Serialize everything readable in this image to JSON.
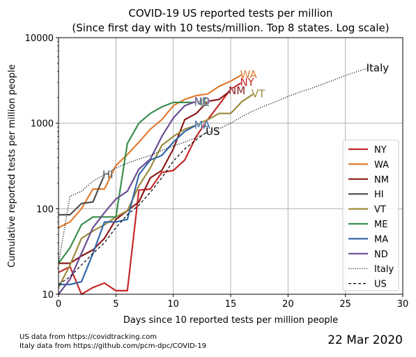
{
  "chart_data": {
    "type": "line",
    "title_line1": "COVID-19 US reported tests per million",
    "title_line2": "(Since first day with 10 tests/million. Top 8 states. Log scale)",
    "xlabel": "Days since 10 reported tests per million people",
    "ylabel": "Cumulative reported tests per million people",
    "xlim": [
      0,
      30
    ],
    "ylim": [
      10,
      10000
    ],
    "yscale": "log",
    "grid": true,
    "legend_placement": "lower-right",
    "x_ticks": [
      "0",
      "5",
      "10",
      "15",
      "20",
      "25",
      "30"
    ],
    "y_ticks": [
      "10",
      "100",
      "1000",
      "10000"
    ],
    "series": [
      {
        "name": "NY",
        "label": "NY",
        "color": "#c62828",
        "dash": "solid",
        "x": [
          0,
          1,
          2,
          3,
          4,
          5,
          6,
          7,
          8,
          9,
          10,
          11,
          12,
          13,
          14,
          15,
          16
        ],
        "y": [
          18,
          21,
          10,
          12,
          13.5,
          11,
          11,
          165,
          170,
          265,
          280,
          370,
          700,
          1100,
          1650,
          2500,
          3000
        ]
      },
      {
        "name": "WA",
        "label": "WA",
        "color": "#e07b30",
        "dash": "solid",
        "x": [
          0,
          1,
          2,
          3,
          4,
          5,
          6,
          7,
          8,
          9,
          10,
          11,
          12,
          13,
          14,
          15,
          16
        ],
        "y": [
          60,
          70,
          100,
          170,
          170,
          320,
          430,
          600,
          850,
          1100,
          1600,
          1900,
          2100,
          2200,
          2700,
          3100,
          3700
        ]
      },
      {
        "name": "NM",
        "label": "NM",
        "color": "#8b1a1a",
        "dash": "solid",
        "x": [
          0,
          1,
          2,
          3,
          4,
          5,
          6,
          7,
          8,
          9,
          10,
          11,
          12,
          13,
          14,
          15
        ],
        "y": [
          23,
          23,
          28,
          33,
          45,
          75,
          95,
          120,
          230,
          280,
          500,
          1100,
          1300,
          1800,
          1900,
          2400
        ]
      },
      {
        "name": "HI",
        "label": "HI",
        "color": "#4d4d4d",
        "dash": "solid",
        "x": [
          0,
          1,
          2,
          3,
          4
        ],
        "y": [
          85,
          85,
          115,
          120,
          250
        ]
      },
      {
        "name": "VT",
        "label": "VT",
        "color": "#9b8a3c",
        "dash": "solid",
        "x": [
          0,
          1,
          2,
          3,
          4,
          5,
          6,
          7,
          8,
          9,
          10,
          11,
          12,
          13,
          14,
          15,
          16,
          17
        ],
        "y": [
          12,
          22,
          45,
          55,
          65,
          80,
          95,
          185,
          300,
          550,
          700,
          850,
          950,
          1100,
          1300,
          1300,
          1800,
          2200
        ]
      },
      {
        "name": "ME",
        "label": "ME",
        "color": "#3b8f4e",
        "dash": "solid",
        "x": [
          0,
          1,
          2,
          3,
          4,
          5,
          6,
          7,
          8,
          9,
          10,
          11,
          12
        ],
        "y": [
          23,
          35,
          65,
          80,
          80,
          80,
          580,
          1000,
          1300,
          1550,
          1750,
          1750,
          1750
        ]
      },
      {
        "name": "MA",
        "label": "MA",
        "color": "#3368a8",
        "dash": "solid",
        "x": [
          0,
          1,
          2,
          3,
          4,
          5,
          6,
          7,
          8,
          9,
          10,
          11,
          12
        ],
        "y": [
          13,
          13,
          14,
          30,
          70,
          70,
          75,
          250,
          370,
          420,
          600,
          800,
          950
        ]
      },
      {
        "name": "ND",
        "label": "ND",
        "color": "#6a4c93",
        "dash": "solid",
        "x": [
          0,
          1,
          2,
          3,
          4,
          5,
          6,
          7,
          8,
          9,
          10,
          11,
          12
        ],
        "y": [
          10,
          15,
          30,
          60,
          90,
          130,
          160,
          290,
          380,
          700,
          1150,
          1600,
          1800
        ]
      },
      {
        "name": "Italy",
        "label": "Italy",
        "color": "#000000",
        "dash": "dotted",
        "x": [
          0,
          1,
          2,
          3,
          4,
          5,
          6,
          7,
          8,
          9,
          10,
          11,
          12,
          13,
          14,
          15,
          16,
          17,
          18,
          19,
          20,
          21,
          22,
          23,
          24,
          25,
          26,
          27
        ],
        "y": [
          23,
          140,
          160,
          210,
          250,
          300,
          340,
          380,
          420,
          480,
          540,
          600,
          680,
          780,
          860,
          1000,
          1200,
          1400,
          1600,
          1800,
          2050,
          2300,
          2550,
          2850,
          3200,
          3600,
          4000,
          4400
        ]
      },
      {
        "name": "US",
        "label": "US",
        "color": "#000000",
        "dash": "dashed",
        "x": [
          0,
          1,
          2,
          3,
          4,
          5,
          6,
          7,
          8,
          9,
          10,
          11,
          12,
          13
        ],
        "y": [
          13,
          16,
          22,
          30,
          40,
          60,
          85,
          110,
          155,
          230,
          360,
          500,
          640,
          800
        ]
      }
    ],
    "sources": [
      "US data from https://covidtracking.com",
      "Italy data from https://github.com/pcm-dpc/COVID-19"
    ],
    "date": "22 Mar 2020"
  }
}
